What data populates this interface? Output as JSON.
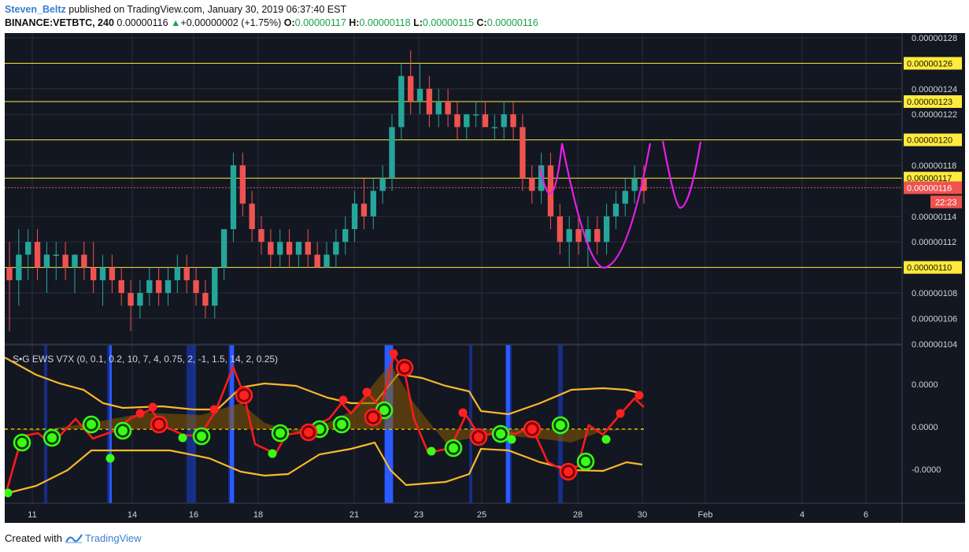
{
  "header": {
    "author": "Steven_Beltz",
    "published": "published on TradingView.com, January 30, 2019 06:37:40 EST",
    "symbol": "BINANCE:VETBTC, 240",
    "last": "0.00000116",
    "change_arrow": "▲",
    "change": "+0.00000002 (+1.75%)",
    "open_label": "O:",
    "open": "0.00000117",
    "high_label": "H:",
    "high": "0.00000118",
    "low_label": "L:",
    "low": "0.00000115",
    "close_label": "C:",
    "close": "0.00000116"
  },
  "indicator": {
    "label": "S•G EWS V7X (0, 0.1, 0.2, 10, 7, 4, 0.75, 2, -1, 1.5, 14, 2, 0.25)",
    "axis_labels": [
      "0.0000",
      "0.0000",
      "-0.0000"
    ]
  },
  "footer": {
    "created_with": "Created with",
    "brand": "TradingView"
  },
  "colors": {
    "background": "#131722",
    "grid": "#2a2e39",
    "up_candle": "#26a69a",
    "down_candle": "#ef5350",
    "level_line": "#ffeb3b",
    "projection": "#e91ee8",
    "band": "#fbb829",
    "signal_line": "#ff1a1a"
  },
  "chart_data": {
    "type": "candlestick",
    "symbol": "BINANCE:VETBTC",
    "interval": "240",
    "y_ticks": [
      "0.00000128",
      "0.00000124",
      "0.00000122",
      "0.00000118",
      "0.00000114",
      "0.00000112",
      "0.00000108",
      "0.00000106",
      "0.00000104"
    ],
    "x_ticks": [
      "11",
      "14",
      "16",
      "18",
      "21",
      "23",
      "25",
      "28",
      "30",
      "Feb",
      "4",
      "6"
    ],
    "levels": [
      "0.00000126",
      "0.00000123",
      "0.00000120",
      "0.00000117",
      "0.00000110"
    ],
    "current_price": "0.00000116",
    "countdown": "22:23",
    "candles": [
      {
        "o": 110,
        "h": 112,
        "l": 105,
        "c": 109
      },
      {
        "o": 109,
        "h": 113,
        "l": 107,
        "c": 111
      },
      {
        "o": 111,
        "h": 113,
        "l": 109,
        "c": 112
      },
      {
        "o": 112,
        "h": 113,
        "l": 109,
        "c": 110
      },
      {
        "o": 110,
        "h": 112,
        "l": 108,
        "c": 111
      },
      {
        "o": 111,
        "h": 112,
        "l": 109,
        "c": 111
      },
      {
        "o": 111,
        "h": 112,
        "l": 109,
        "c": 110
      },
      {
        "o": 110,
        "h": 111,
        "l": 108,
        "c": 111
      },
      {
        "o": 111,
        "h": 112,
        "l": 109,
        "c": 110
      },
      {
        "o": 110,
        "h": 112,
        "l": 108,
        "c": 109
      },
      {
        "o": 109,
        "h": 111,
        "l": 107,
        "c": 110
      },
      {
        "o": 110,
        "h": 111,
        "l": 108,
        "c": 109
      },
      {
        "o": 109,
        "h": 110,
        "l": 107,
        "c": 108
      },
      {
        "o": 108,
        "h": 109,
        "l": 105,
        "c": 107
      },
      {
        "o": 107,
        "h": 109,
        "l": 106,
        "c": 108
      },
      {
        "o": 108,
        "h": 110,
        "l": 107,
        "c": 109
      },
      {
        "o": 109,
        "h": 110,
        "l": 107,
        "c": 108
      },
      {
        "o": 108,
        "h": 110,
        "l": 107,
        "c": 109
      },
      {
        "o": 109,
        "h": 111,
        "l": 108,
        "c": 110
      },
      {
        "o": 110,
        "h": 111,
        "l": 108,
        "c": 109
      },
      {
        "o": 109,
        "h": 110,
        "l": 107,
        "c": 108
      },
      {
        "o": 108,
        "h": 109,
        "l": 106,
        "c": 107
      },
      {
        "o": 107,
        "h": 110,
        "l": 106,
        "c": 110
      },
      {
        "o": 110,
        "h": 113,
        "l": 109,
        "c": 113
      },
      {
        "o": 113,
        "h": 119,
        "l": 112,
        "c": 118
      },
      {
        "o": 118,
        "h": 119,
        "l": 114,
        "c": 115
      },
      {
        "o": 115,
        "h": 116,
        "l": 112,
        "c": 113
      },
      {
        "o": 113,
        "h": 114,
        "l": 111,
        "c": 112
      },
      {
        "o": 112,
        "h": 113,
        "l": 110,
        "c": 111
      },
      {
        "o": 111,
        "h": 113,
        "l": 110,
        "c": 112
      },
      {
        "o": 112,
        "h": 113,
        "l": 110,
        "c": 111
      },
      {
        "o": 111,
        "h": 112,
        "l": 110,
        "c": 112
      },
      {
        "o": 112,
        "h": 113,
        "l": 110,
        "c": 111
      },
      {
        "o": 111,
        "h": 112,
        "l": 110,
        "c": 110
      },
      {
        "o": 110,
        "h": 112,
        "l": 110,
        "c": 111
      },
      {
        "o": 111,
        "h": 113,
        "l": 110,
        "c": 112
      },
      {
        "o": 112,
        "h": 114,
        "l": 111,
        "c": 113
      },
      {
        "o": 113,
        "h": 116,
        "l": 112,
        "c": 115
      },
      {
        "o": 115,
        "h": 117,
        "l": 113,
        "c": 114
      },
      {
        "o": 114,
        "h": 117,
        "l": 113,
        "c": 116
      },
      {
        "o": 116,
        "h": 118,
        "l": 115,
        "c": 117
      },
      {
        "o": 117,
        "h": 122,
        "l": 116,
        "c": 121
      },
      {
        "o": 121,
        "h": 126,
        "l": 120,
        "c": 125
      },
      {
        "o": 125,
        "h": 127,
        "l": 122,
        "c": 123
      },
      {
        "o": 123,
        "h": 126,
        "l": 122,
        "c": 124
      },
      {
        "o": 124,
        "h": 125,
        "l": 121,
        "c": 122
      },
      {
        "o": 122,
        "h": 124,
        "l": 121,
        "c": 123
      },
      {
        "o": 123,
        "h": 124,
        "l": 121,
        "c": 122
      },
      {
        "o": 122,
        "h": 123,
        "l": 120,
        "c": 121
      },
      {
        "o": 121,
        "h": 122,
        "l": 120,
        "c": 122
      },
      {
        "o": 122,
        "h": 123,
        "l": 121,
        "c": 122
      },
      {
        "o": 122,
        "h": 123,
        "l": 121,
        "c": 121
      },
      {
        "o": 121,
        "h": 122,
        "l": 120,
        "c": 121
      },
      {
        "o": 121,
        "h": 123,
        "l": 120,
        "c": 122
      },
      {
        "o": 122,
        "h": 123,
        "l": 120,
        "c": 121
      },
      {
        "o": 121,
        "h": 122,
        "l": 116,
        "c": 117
      },
      {
        "o": 117,
        "h": 118,
        "l": 115,
        "c": 116
      },
      {
        "o": 116,
        "h": 119,
        "l": 115,
        "c": 118
      },
      {
        "o": 118,
        "h": 119,
        "l": 113,
        "c": 114
      },
      {
        "o": 114,
        "h": 115,
        "l": 111,
        "c": 112
      },
      {
        "o": 112,
        "h": 114,
        "l": 110,
        "c": 113
      },
      {
        "o": 113,
        "h": 114,
        "l": 111,
        "c": 112
      },
      {
        "o": 112,
        "h": 114,
        "l": 110,
        "c": 113
      },
      {
        "o": 113,
        "h": 114,
        "l": 111,
        "c": 112
      },
      {
        "o": 112,
        "h": 115,
        "l": 111,
        "c": 114
      },
      {
        "o": 114,
        "h": 116,
        "l": 113,
        "c": 115
      },
      {
        "o": 115,
        "h": 117,
        "l": 114,
        "c": 116
      },
      {
        "o": 116,
        "h": 118,
        "l": 115,
        "c": 117
      },
      {
        "o": 117,
        "h": 118,
        "l": 115,
        "c": 116
      }
    ],
    "projection": "hand-drawn magenta curve",
    "indicator": "S•G EWS V7X"
  }
}
